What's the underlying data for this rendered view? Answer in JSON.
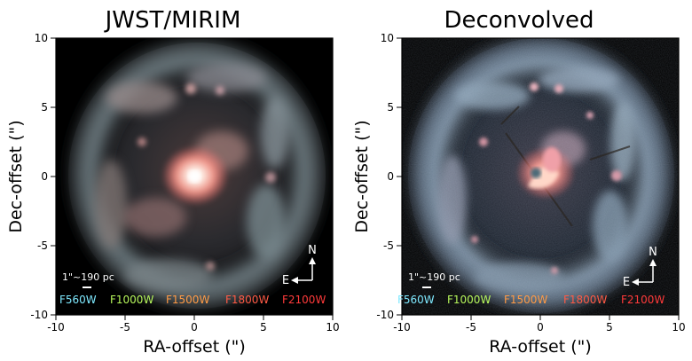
{
  "panels": [
    {
      "id": "left",
      "title": "JWST/MIRIM",
      "xlabel": "RA-offset (\")",
      "ylabel": "Dec-offset (\")",
      "x_ticks": [
        "-10",
        "-5",
        "0",
        "5",
        "10"
      ],
      "y_ticks": [
        "10",
        "5",
        "0",
        "-5",
        "-10"
      ],
      "scale_bar_label": "1\"~190 pc",
      "compass": {
        "north": "N",
        "east": "E"
      },
      "filters": [
        {
          "label": "F560W",
          "color": "#7fe9ff"
        },
        {
          "label": "F1000W",
          "color": "#b6f65b"
        },
        {
          "label": "F1500W",
          "color": "#ff9a45"
        },
        {
          "label": "F1800W",
          "color": "#ff5a45"
        },
        {
          "label": "F2100W",
          "color": "#ff3a3a"
        }
      ]
    },
    {
      "id": "right",
      "title": "Deconvolved",
      "xlabel": "RA-offset (\")",
      "ylabel": "Dec-offset (\")",
      "x_ticks": [
        "-10",
        "-5",
        "0",
        "5",
        "10"
      ],
      "y_ticks": [
        "10",
        "5",
        "0",
        "-5",
        "-10"
      ],
      "scale_bar_label": "1\"~190 pc",
      "compass": {
        "north": "N",
        "east": "E"
      },
      "filters": [
        {
          "label": "F560W",
          "color": "#7fe9ff"
        },
        {
          "label": "F1000W",
          "color": "#b6f65b"
        },
        {
          "label": "F1500W",
          "color": "#ff9a45"
        },
        {
          "label": "F1800W",
          "color": "#ff5a45"
        },
        {
          "label": "F2100W",
          "color": "#ff3a3a"
        }
      ]
    }
  ],
  "colors": {
    "background": "#000000",
    "ring_jwst": "#6f7f86",
    "ring_deconv": "#7d92a6",
    "core": "#ffffff",
    "core_glow": "#ff9a8a"
  }
}
